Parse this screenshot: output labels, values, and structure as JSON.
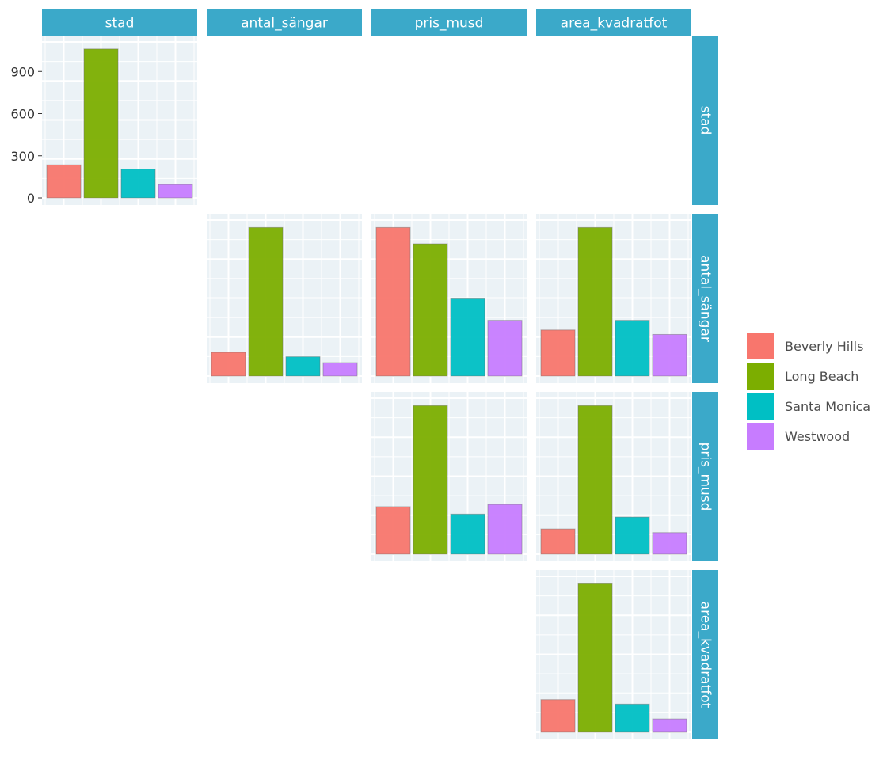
{
  "chart_data": {
    "type": "bar",
    "layout": "pairs-matrix",
    "variables": [
      "stad",
      "antal_sängar",
      "pris_musd",
      "area_kvadratfot"
    ],
    "categories": [
      "Beverly Hills",
      "Long Beach",
      "Santa Monica",
      "Westwood"
    ],
    "colors": {
      "Beverly Hills": "#F8766D",
      "Long Beach": "#7CAE00",
      "Santa Monica": "#00BFC4",
      "Westwood": "#C77CFF",
      "strip": "#3BA9C9",
      "panel": "#EBF2F6"
    },
    "legend": {
      "position": "right",
      "items": [
        "Beverly Hills",
        "Long Beach",
        "Santa Monica",
        "Westwood"
      ]
    },
    "grid": true,
    "panels": [
      {
        "row": "stad",
        "col": "stad",
        "values": [
          235,
          1060,
          205,
          95
        ],
        "ylim": [
          0,
          1110
        ],
        "yticks": [
          "0",
          "300",
          "600",
          "900"
        ],
        "ytick_values": [
          0,
          300,
          600,
          900
        ]
      },
      {
        "row": "antal_sängar",
        "col": "antal_sängar",
        "values": [
          0.16,
          1.0,
          0.13,
          0.09
        ],
        "ylim": [
          0,
          1.05
        ]
      },
      {
        "row": "antal_sängar",
        "col": "pris_musd",
        "values": [
          1.0,
          0.89,
          0.52,
          0.375
        ],
        "ylim": [
          0,
          1.05
        ]
      },
      {
        "row": "antal_sängar",
        "col": "area_kvadratfot",
        "values": [
          0.31,
          1.0,
          0.375,
          0.28
        ],
        "ylim": [
          0,
          1.05
        ]
      },
      {
        "row": "pris_musd",
        "col": "pris_musd",
        "values": [
          0.32,
          1.0,
          0.27,
          0.335
        ],
        "ylim": [
          0,
          1.05
        ]
      },
      {
        "row": "pris_musd",
        "col": "area_kvadratfot",
        "values": [
          0.17,
          1.0,
          0.25,
          0.145
        ],
        "ylim": [
          0,
          1.05
        ]
      },
      {
        "row": "area_kvadratfot",
        "col": "area_kvadratfot",
        "values": [
          0.22,
          1.0,
          0.19,
          0.09
        ],
        "ylim": [
          0,
          1.05
        ]
      }
    ]
  }
}
